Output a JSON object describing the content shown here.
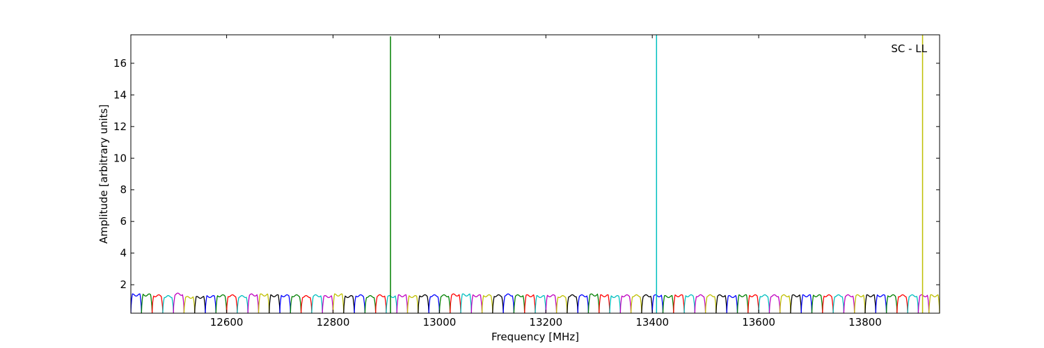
{
  "chart_data": {
    "type": "line",
    "title": "",
    "annotation": "SC - LL",
    "xlabel": "Frequency [MHz]",
    "ylabel": "Amplitude [arbitrary units]",
    "xlim": [
      12420,
      13940
    ],
    "ylim": [
      0.2,
      17.8
    ],
    "x_ticks": [
      12600,
      12800,
      13000,
      13200,
      13400,
      13600,
      13800
    ],
    "y_ticks": [
      2,
      4,
      6,
      8,
      10,
      12,
      14,
      16
    ],
    "grid": false,
    "legend": "none",
    "channel_width_mhz": 20,
    "channel_start_mhz": 12420,
    "channel_peak_amplitudes": [
      1.35,
      1.35,
      1.3,
      1.25,
      1.4,
      1.2,
      1.2,
      1.25,
      1.3,
      1.3,
      1.25,
      1.35,
      1.35,
      1.3,
      1.3,
      1.3,
      1.25,
      1.3,
      1.25,
      1.35,
      1.25,
      1.3,
      1.25,
      1.3,
      1.25,
      1.3,
      1.25,
      1.3,
      1.3,
      1.3,
      1.35,
      1.35,
      1.3,
      1.3,
      1.3,
      1.35,
      1.3,
      1.3,
      1.25,
      1.3,
      1.25,
      1.3,
      1.3,
      1.35,
      1.3,
      1.25,
      1.3,
      1.3,
      1.3,
      1.3,
      1.25,
      1.3,
      1.3,
      1.3,
      1.3,
      1.3,
      1.25,
      1.3,
      1.3,
      1.3,
      1.3,
      1.3,
      1.3,
      1.3,
      1.3,
      1.3,
      1.3,
      1.3,
      1.3,
      1.3,
      1.3,
      1.3,
      1.3,
      1.3,
      1.3,
      1.3
    ],
    "spikes": [
      {
        "x": 12908,
        "y": 17.7,
        "color": "#007f00"
      },
      {
        "x": 13408,
        "y": 17.8,
        "color": "#00bfbf"
      },
      {
        "x": 13908,
        "y": 17.8,
        "color": "#bfbf00"
      }
    ],
    "color_cycle": [
      "#0000ff",
      "#007f00",
      "#ff0000",
      "#00bfbf",
      "#bf00bf",
      "#bfbf00",
      "#000000"
    ]
  }
}
